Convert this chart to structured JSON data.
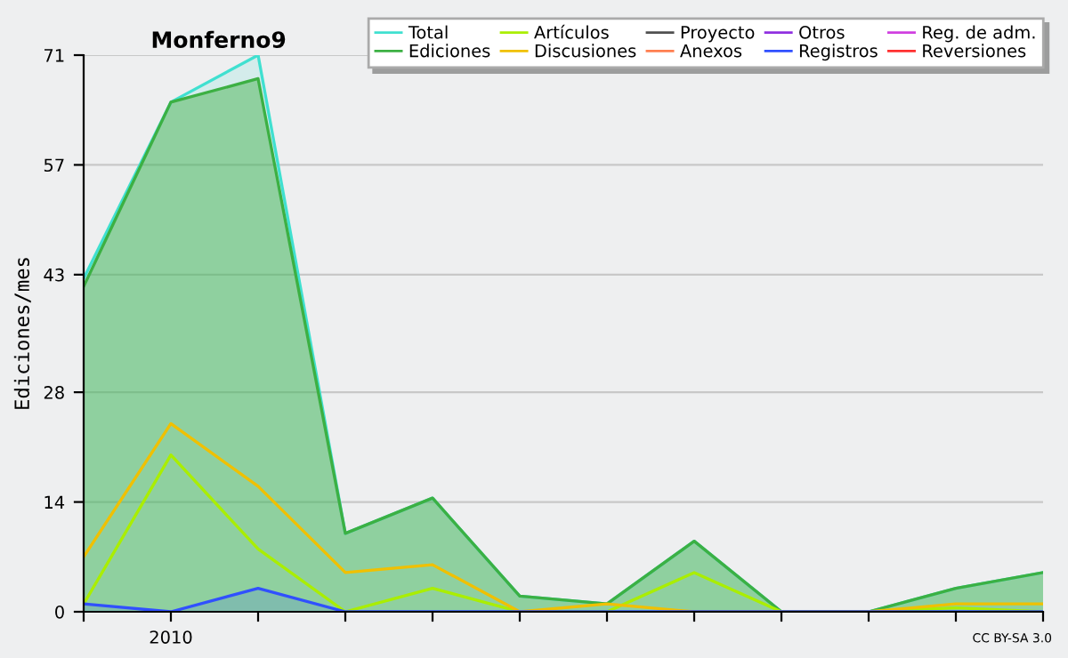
{
  "chart_data": {
    "type": "line",
    "title": "Monferno9",
    "ylabel": "Ediciones/mes",
    "categories": [
      null,
      "2010",
      null,
      null,
      null,
      null,
      null,
      null,
      null,
      null,
      null,
      null
    ],
    "ylim": [
      0,
      71
    ],
    "yticks": [
      0,
      14,
      28,
      43,
      57,
      71
    ],
    "grid": "y",
    "legend": "top right",
    "marker": "none",
    "line_style": "solid",
    "annotations": [
      "CC BY-SA 3.0"
    ],
    "series": [
      {
        "name": "Total",
        "type": "area",
        "color": "#40e0d0",
        "values": [
          42.5,
          65,
          71,
          10,
          14.5,
          2,
          1,
          9,
          0,
          0,
          3,
          5
        ]
      },
      {
        "name": "Ediciones",
        "type": "area",
        "color": "#3cb043",
        "values": [
          41.5,
          65,
          68,
          10,
          14.5,
          2,
          1,
          9,
          0,
          0,
          3,
          5
        ]
      },
      {
        "name": "Artículos",
        "color": "#aaee00",
        "values": [
          1,
          20,
          8,
          0,
          3,
          0,
          0,
          5,
          0,
          0,
          0.5,
          0
        ]
      },
      {
        "name": "Discusiones",
        "color": "#f0c000",
        "values": [
          7,
          24,
          16,
          5,
          6,
          0,
          1,
          0,
          0,
          0,
          1,
          1
        ]
      },
      {
        "name": "Proyecto",
        "color": "#505050",
        "values": [
          null,
          null,
          null,
          null,
          null,
          null,
          null,
          null,
          null,
          null,
          null,
          null
        ]
      },
      {
        "name": "Anexos",
        "color": "#ff7f50",
        "values": [
          null,
          null,
          null,
          null,
          null,
          null,
          null,
          null,
          null,
          null,
          null,
          null
        ]
      },
      {
        "name": "Otros",
        "color": "#9030e0",
        "values": [
          null,
          null,
          null,
          null,
          null,
          null,
          null,
          null,
          null,
          null,
          null,
          null
        ]
      },
      {
        "name": "Registros",
        "type": "area",
        "color": "#3050ff",
        "values": [
          1,
          0,
          3,
          0,
          0,
          0,
          0,
          0,
          0,
          0,
          0,
          0
        ]
      },
      {
        "name": "Reg. de adm.",
        "color": "#d040e0",
        "values": [
          null,
          null,
          null,
          null,
          null,
          null,
          null,
          null,
          null,
          null,
          null,
          null
        ]
      },
      {
        "name": "Reversiones",
        "color": "#ff3030",
        "values": [
          null,
          null,
          null,
          null,
          null,
          null,
          null,
          null,
          null,
          null,
          null,
          null
        ]
      }
    ]
  }
}
